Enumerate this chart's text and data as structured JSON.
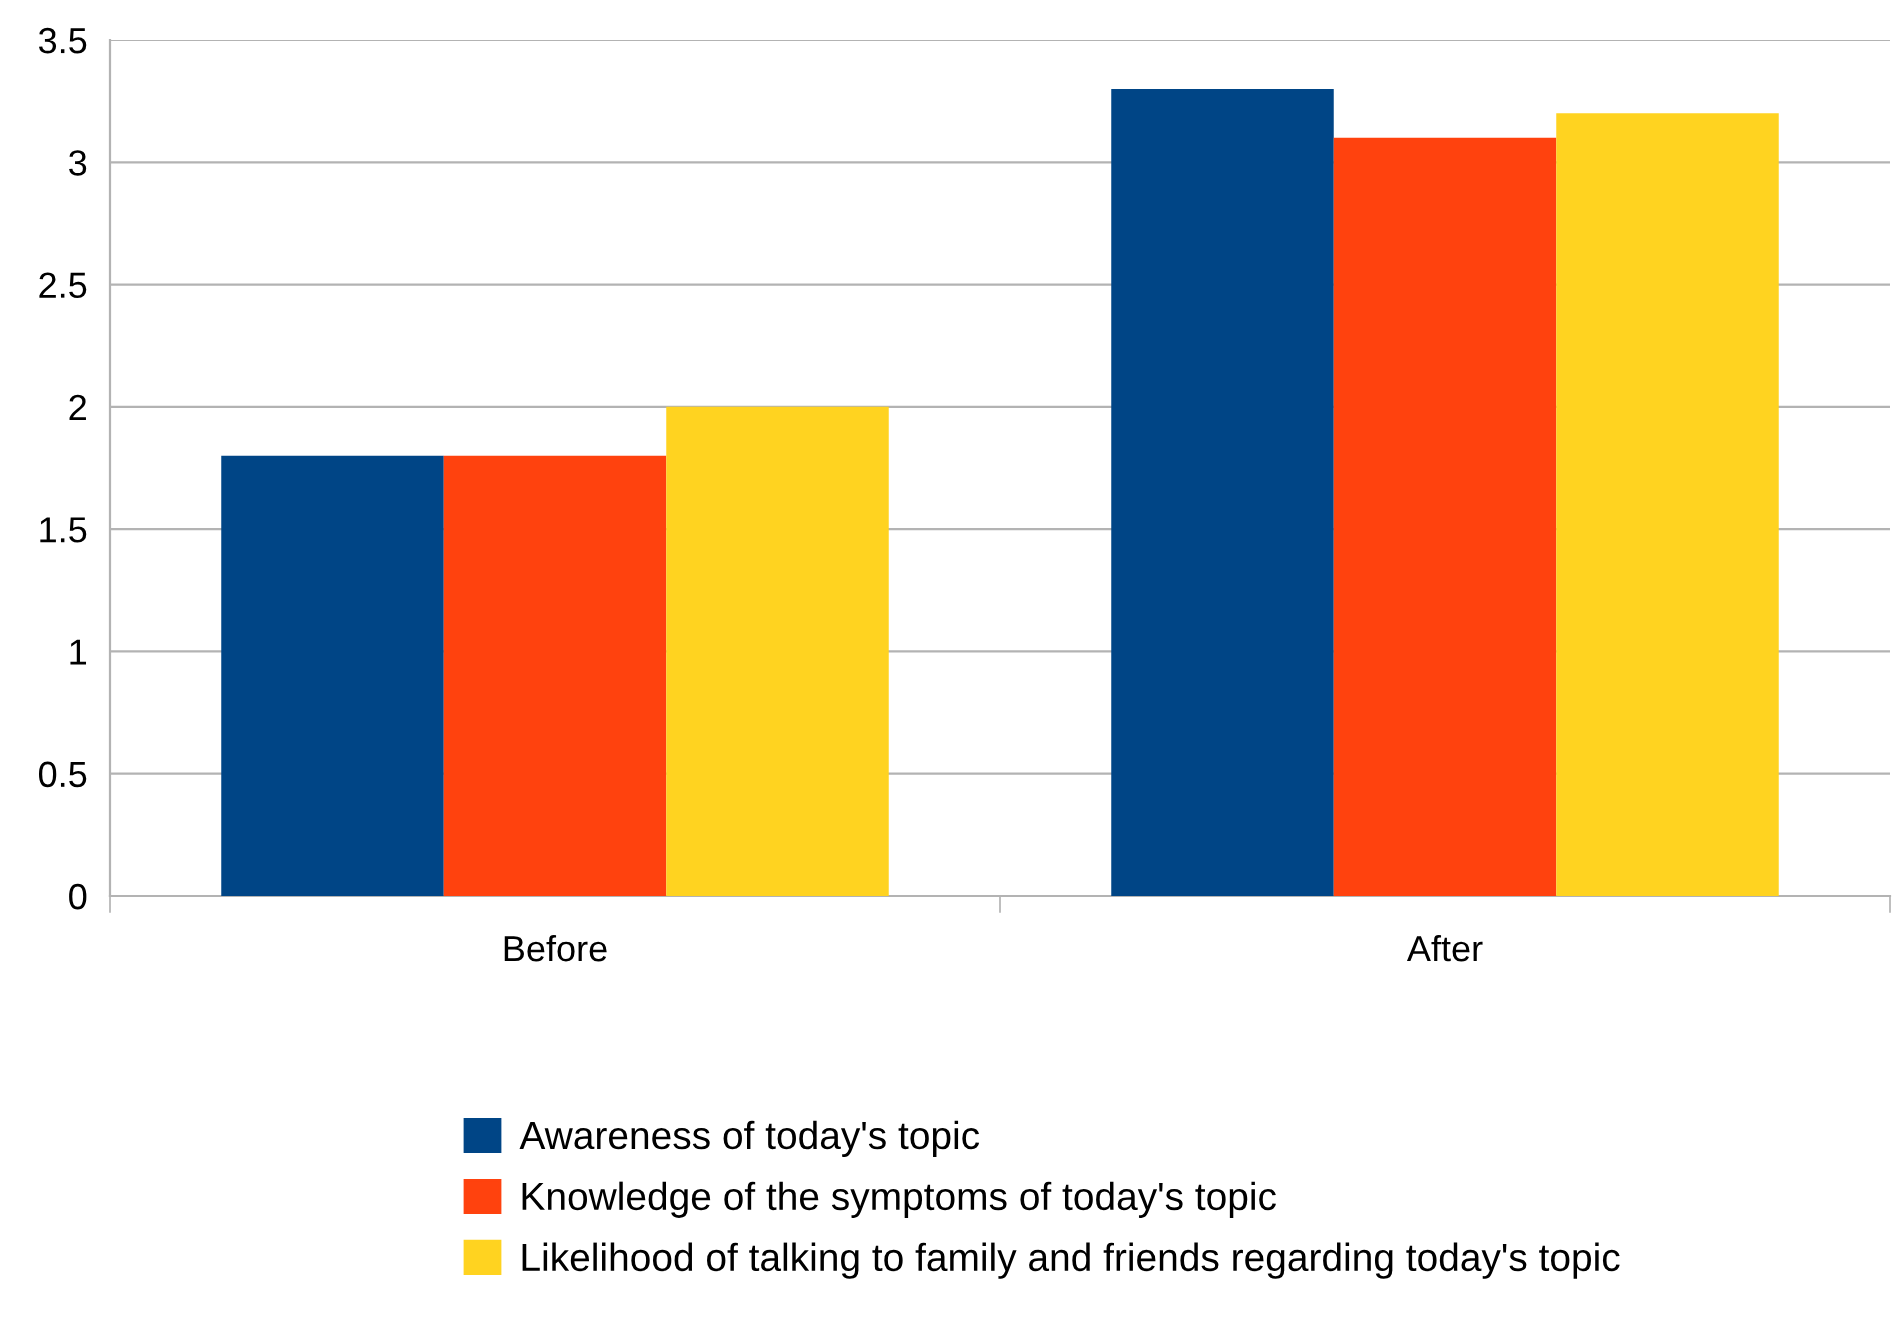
{
  "chart_data": {
    "type": "bar",
    "categories": [
      "Before",
      "After"
    ],
    "series": [
      {
        "name": "Awareness of today's topic",
        "color": "#004586",
        "values": [
          1.8,
          3.3
        ]
      },
      {
        "name": "Knowledge of the symptoms of today's topic",
        "color": "#ff420e",
        "values": [
          1.8,
          3.1
        ]
      },
      {
        "name": "Likelihood of talking to family and friends regarding today's topic",
        "color": "#ffd320",
        "values": [
          2.0,
          3.2
        ]
      }
    ],
    "ylim": [
      0,
      3.5
    ],
    "yticks": [
      0,
      0.5,
      1,
      1.5,
      2,
      2.5,
      3,
      3.5
    ],
    "grid": "y",
    "legend": "bottom"
  }
}
